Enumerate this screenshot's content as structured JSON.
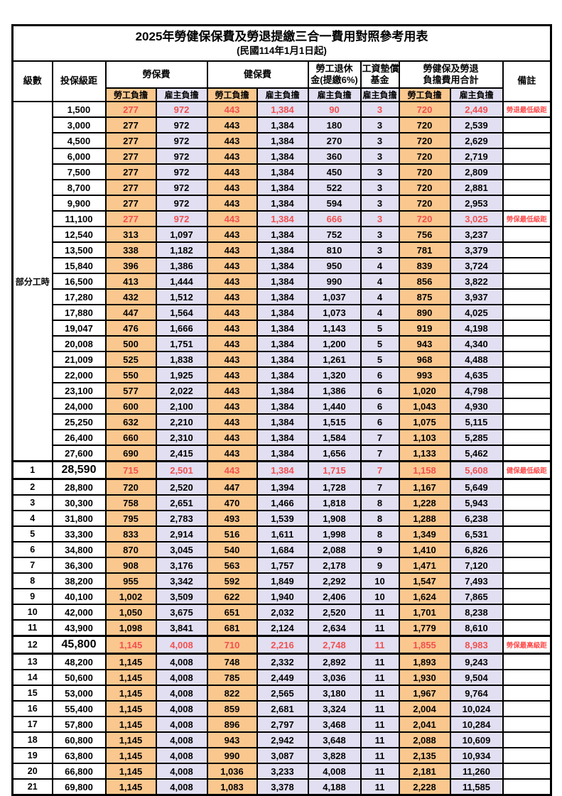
{
  "colors": {
    "orange": "#FAC78E",
    "lavender": "#E1DFF1",
    "red": "#F25050",
    "remark_red": "#FF4D4D",
    "border": "#000000",
    "paper": "#FFFFFF"
  },
  "title": "2025年勞健保保費及勞退提繳三合一費用對照參考用表",
  "subtitle": "(民國114年1月1日起)",
  "header": {
    "level": "級數",
    "bracket": "投保級距",
    "labor": "勞保費",
    "health": "健保費",
    "pension_l1": "勞工退休",
    "pension_l2": "金(提繳6%)",
    "wage_l1": "工資墊償",
    "wage_l2": "基金",
    "total_l1": "勞健保及勞退",
    "total_l2": "負擔費用合計",
    "remark": "備註",
    "employee": "勞工負擔",
    "employer": "雇主負擔"
  },
  "table": {
    "part_time_label": "部分工時",
    "part_time_rowspan": 23,
    "rows": [
      {
        "level": "",
        "bracket": "1,500",
        "v": [
          "277",
          "972",
          "443",
          "1,384",
          "90",
          "3",
          "720",
          "2,449"
        ],
        "remark": "勞退最低級距",
        "red": true,
        "big": false
      },
      {
        "level": "",
        "bracket": "3,000",
        "v": [
          "277",
          "972",
          "443",
          "1,384",
          "180",
          "3",
          "720",
          "2,539"
        ],
        "remark": "",
        "red": false,
        "big": false
      },
      {
        "level": "",
        "bracket": "4,500",
        "v": [
          "277",
          "972",
          "443",
          "1,384",
          "270",
          "3",
          "720",
          "2,629"
        ],
        "remark": "",
        "red": false,
        "big": false
      },
      {
        "level": "",
        "bracket": "6,000",
        "v": [
          "277",
          "972",
          "443",
          "1,384",
          "360",
          "3",
          "720",
          "2,719"
        ],
        "remark": "",
        "red": false,
        "big": false
      },
      {
        "level": "",
        "bracket": "7,500",
        "v": [
          "277",
          "972",
          "443",
          "1,384",
          "450",
          "3",
          "720",
          "2,809"
        ],
        "remark": "",
        "red": false,
        "big": false
      },
      {
        "level": "",
        "bracket": "8,700",
        "v": [
          "277",
          "972",
          "443",
          "1,384",
          "522",
          "3",
          "720",
          "2,881"
        ],
        "remark": "",
        "red": false,
        "big": false
      },
      {
        "level": "",
        "bracket": "9,900",
        "v": [
          "277",
          "972",
          "443",
          "1,384",
          "594",
          "3",
          "720",
          "2,953"
        ],
        "remark": "",
        "red": false,
        "big": false
      },
      {
        "level": "",
        "bracket": "11,100",
        "v": [
          "277",
          "972",
          "443",
          "1,384",
          "666",
          "3",
          "720",
          "3,025"
        ],
        "remark": "勞保最低級距",
        "red": true,
        "big": false
      },
      {
        "level": "",
        "bracket": "12,540",
        "v": [
          "313",
          "1,097",
          "443",
          "1,384",
          "752",
          "3",
          "756",
          "3,237"
        ],
        "remark": "",
        "red": false,
        "big": false
      },
      {
        "level": "",
        "bracket": "13,500",
        "v": [
          "338",
          "1,182",
          "443",
          "1,384",
          "810",
          "3",
          "781",
          "3,379"
        ],
        "remark": "",
        "red": false,
        "big": false
      },
      {
        "level": "",
        "bracket": "15,840",
        "v": [
          "396",
          "1,386",
          "443",
          "1,384",
          "950",
          "4",
          "839",
          "3,724"
        ],
        "remark": "",
        "red": false,
        "big": false
      },
      {
        "level": "",
        "bracket": "16,500",
        "v": [
          "413",
          "1,444",
          "443",
          "1,384",
          "990",
          "4",
          "856",
          "3,822"
        ],
        "remark": "",
        "red": false,
        "big": false
      },
      {
        "level": "",
        "bracket": "17,280",
        "v": [
          "432",
          "1,512",
          "443",
          "1,384",
          "1,037",
          "4",
          "875",
          "3,937"
        ],
        "remark": "",
        "red": false,
        "big": false
      },
      {
        "level": "",
        "bracket": "17,880",
        "v": [
          "447",
          "1,564",
          "443",
          "1,384",
          "1,073",
          "4",
          "890",
          "4,025"
        ],
        "remark": "",
        "red": false,
        "big": false
      },
      {
        "level": "",
        "bracket": "19,047",
        "v": [
          "476",
          "1,666",
          "443",
          "1,384",
          "1,143",
          "5",
          "919",
          "4,198"
        ],
        "remark": "",
        "red": false,
        "big": false
      },
      {
        "level": "",
        "bracket": "20,008",
        "v": [
          "500",
          "1,751",
          "443",
          "1,384",
          "1,200",
          "5",
          "943",
          "4,340"
        ],
        "remark": "",
        "red": false,
        "big": false
      },
      {
        "level": "",
        "bracket": "21,009",
        "v": [
          "525",
          "1,838",
          "443",
          "1,384",
          "1,261",
          "5",
          "968",
          "4,488"
        ],
        "remark": "",
        "red": false,
        "big": false
      },
      {
        "level": "",
        "bracket": "22,000",
        "v": [
          "550",
          "1,925",
          "443",
          "1,384",
          "1,320",
          "6",
          "993",
          "4,635"
        ],
        "remark": "",
        "red": false,
        "big": false
      },
      {
        "level": "",
        "bracket": "23,100",
        "v": [
          "577",
          "2,022",
          "443",
          "1,384",
          "1,386",
          "6",
          "1,020",
          "4,798"
        ],
        "remark": "",
        "red": false,
        "big": false
      },
      {
        "level": "",
        "bracket": "24,000",
        "v": [
          "600",
          "2,100",
          "443",
          "1,384",
          "1,440",
          "6",
          "1,043",
          "4,930"
        ],
        "remark": "",
        "red": false,
        "big": false
      },
      {
        "level": "",
        "bracket": "25,250",
        "v": [
          "632",
          "2,210",
          "443",
          "1,384",
          "1,515",
          "6",
          "1,075",
          "5,115"
        ],
        "remark": "",
        "red": false,
        "big": false
      },
      {
        "level": "",
        "bracket": "26,400",
        "v": [
          "660",
          "2,310",
          "443",
          "1,384",
          "1,584",
          "7",
          "1,103",
          "5,285"
        ],
        "remark": "",
        "red": false,
        "big": false
      },
      {
        "level": "",
        "bracket": "27,600",
        "v": [
          "690",
          "2,415",
          "443",
          "1,384",
          "1,656",
          "7",
          "1,133",
          "5,462"
        ],
        "remark": "",
        "red": false,
        "big": false
      },
      {
        "level": "1",
        "bracket": "28,590",
        "v": [
          "715",
          "2,501",
          "443",
          "1,384",
          "1,715",
          "7",
          "1,158",
          "5,608"
        ],
        "remark": "健保最低級距",
        "red": true,
        "big": true
      },
      {
        "level": "2",
        "bracket": "28,800",
        "v": [
          "720",
          "2,520",
          "447",
          "1,394",
          "1,728",
          "7",
          "1,167",
          "5,649"
        ],
        "remark": "",
        "red": false,
        "big": false
      },
      {
        "level": "3",
        "bracket": "30,300",
        "v": [
          "758",
          "2,651",
          "470",
          "1,466",
          "1,818",
          "8",
          "1,228",
          "5,943"
        ],
        "remark": "",
        "red": false,
        "big": false
      },
      {
        "level": "4",
        "bracket": "31,800",
        "v": [
          "795",
          "2,783",
          "493",
          "1,539",
          "1,908",
          "8",
          "1,288",
          "6,238"
        ],
        "remark": "",
        "red": false,
        "big": false
      },
      {
        "level": "5",
        "bracket": "33,300",
        "v": [
          "833",
          "2,914",
          "516",
          "1,611",
          "1,998",
          "8",
          "1,349",
          "6,531"
        ],
        "remark": "",
        "red": false,
        "big": false
      },
      {
        "level": "6",
        "bracket": "34,800",
        "v": [
          "870",
          "3,045",
          "540",
          "1,684",
          "2,088",
          "9",
          "1,410",
          "6,826"
        ],
        "remark": "",
        "red": false,
        "big": false
      },
      {
        "level": "7",
        "bracket": "36,300",
        "v": [
          "908",
          "3,176",
          "563",
          "1,757",
          "2,178",
          "9",
          "1,471",
          "7,120"
        ],
        "remark": "",
        "red": false,
        "big": false
      },
      {
        "level": "8",
        "bracket": "38,200",
        "v": [
          "955",
          "3,342",
          "592",
          "1,849",
          "2,292",
          "10",
          "1,547",
          "7,493"
        ],
        "remark": "",
        "red": false,
        "big": false
      },
      {
        "level": "9",
        "bracket": "40,100",
        "v": [
          "1,002",
          "3,509",
          "622",
          "1,940",
          "2,406",
          "10",
          "1,624",
          "7,865"
        ],
        "remark": "",
        "red": false,
        "big": false
      },
      {
        "level": "10",
        "bracket": "42,000",
        "v": [
          "1,050",
          "3,675",
          "651",
          "2,032",
          "2,520",
          "11",
          "1,701",
          "8,238"
        ],
        "remark": "",
        "red": false,
        "big": false
      },
      {
        "level": "11",
        "bracket": "43,900",
        "v": [
          "1,098",
          "3,841",
          "681",
          "2,124",
          "2,634",
          "11",
          "1,779",
          "8,610"
        ],
        "remark": "",
        "red": false,
        "big": false
      },
      {
        "level": "12",
        "bracket": "45,800",
        "v": [
          "1,145",
          "4,008",
          "710",
          "2,216",
          "2,748",
          "11",
          "1,855",
          "8,983"
        ],
        "remark": "勞保最高級距",
        "red": true,
        "big": true
      },
      {
        "level": "13",
        "bracket": "48,200",
        "v": [
          "1,145",
          "4,008",
          "748",
          "2,332",
          "2,892",
          "11",
          "1,893",
          "9,243"
        ],
        "remark": "",
        "red": false,
        "big": false
      },
      {
        "level": "14",
        "bracket": "50,600",
        "v": [
          "1,145",
          "4,008",
          "785",
          "2,449",
          "3,036",
          "11",
          "1,930",
          "9,504"
        ],
        "remark": "",
        "red": false,
        "big": false
      },
      {
        "level": "15",
        "bracket": "53,000",
        "v": [
          "1,145",
          "4,008",
          "822",
          "2,565",
          "3,180",
          "11",
          "1,967",
          "9,764"
        ],
        "remark": "",
        "red": false,
        "big": false
      },
      {
        "level": "16",
        "bracket": "55,400",
        "v": [
          "1,145",
          "4,008",
          "859",
          "2,681",
          "3,324",
          "11",
          "2,004",
          "10,024"
        ],
        "remark": "",
        "red": false,
        "big": false
      },
      {
        "level": "17",
        "bracket": "57,800",
        "v": [
          "1,145",
          "4,008",
          "896",
          "2,797",
          "3,468",
          "11",
          "2,041",
          "10,284"
        ],
        "remark": "",
        "red": false,
        "big": false
      },
      {
        "level": "18",
        "bracket": "60,800",
        "v": [
          "1,145",
          "4,008",
          "943",
          "2,942",
          "3,648",
          "11",
          "2,088",
          "10,609"
        ],
        "remark": "",
        "red": false,
        "big": false
      },
      {
        "level": "19",
        "bracket": "63,800",
        "v": [
          "1,145",
          "4,008",
          "990",
          "3,087",
          "3,828",
          "11",
          "2,135",
          "10,934"
        ],
        "remark": "",
        "red": false,
        "big": false
      },
      {
        "level": "20",
        "bracket": "66,800",
        "v": [
          "1,145",
          "4,008",
          "1,036",
          "3,233",
          "4,008",
          "11",
          "2,181",
          "11,260"
        ],
        "remark": "",
        "red": false,
        "big": false
      },
      {
        "level": "21",
        "bracket": "69,800",
        "v": [
          "1,145",
          "4,008",
          "1,083",
          "3,378",
          "4,188",
          "11",
          "2,228",
          "11,585"
        ],
        "remark": "",
        "red": false,
        "big": false
      }
    ]
  }
}
